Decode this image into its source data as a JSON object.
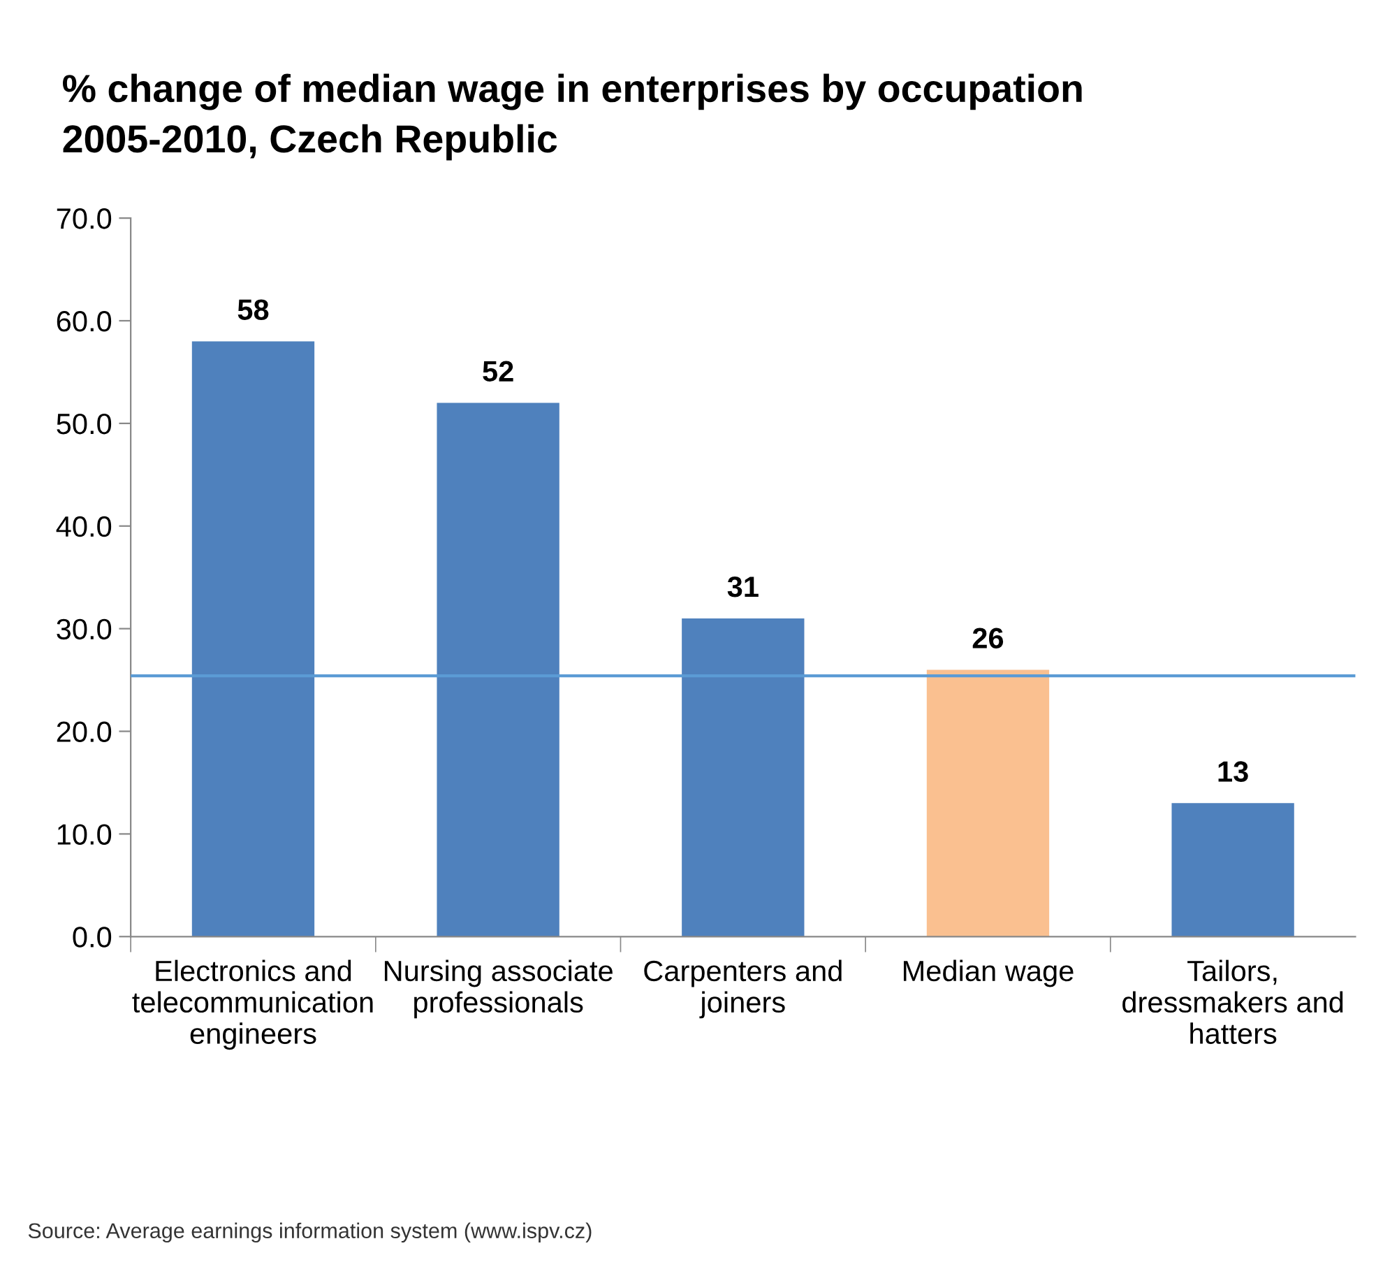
{
  "chart_data": {
    "type": "bar",
    "title": "% change of median wage in enterprises by occupation\n2005-2010, Czech Republic",
    "categories": [
      "Electronics and\ntelecommunication\nengineers",
      "Nursing associate\nprofessionals",
      "Carpenters and\njoiners",
      "Median wage",
      "Tailors,\ndressmakers and\nhatters"
    ],
    "values": [
      58,
      52,
      31,
      26,
      13
    ],
    "colors": [
      "#4f81bd",
      "#4f81bd",
      "#4f81bd",
      "#fac090",
      "#4f81bd"
    ],
    "data_labels": true,
    "ylim": [
      0,
      70
    ],
    "yticks": [
      {
        "value": 0,
        "label": "0.0"
      },
      {
        "value": 10,
        "label": "10.0"
      },
      {
        "value": 20,
        "label": "20.0"
      },
      {
        "value": 30,
        "label": "30.0"
      },
      {
        "value": 40,
        "label": "40.0"
      },
      {
        "value": 50,
        "label": "50.0"
      },
      {
        "value": 60,
        "label": "60.0"
      },
      {
        "value": 70,
        "label": "70.0"
      }
    ],
    "ref_lines": [
      {
        "axis": "y",
        "value": 25.4,
        "color": "#5b9bd5"
      }
    ],
    "grid": false,
    "legend": false,
    "annotations": [
      "Source: Average earnings information system (www.ispv.cz)"
    ]
  }
}
